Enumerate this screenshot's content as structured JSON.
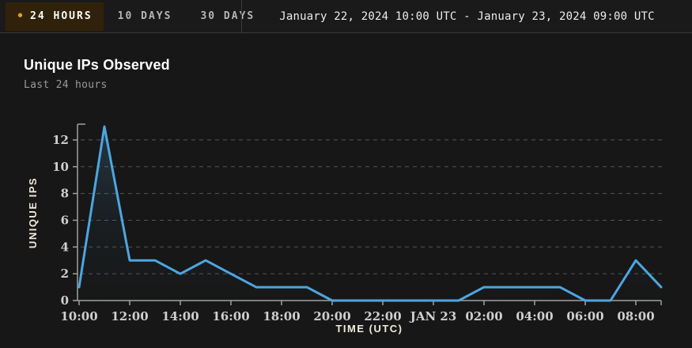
{
  "topbar": {
    "tabs": [
      {
        "label": "24 HOURS",
        "active": true
      },
      {
        "label": "10 DAYS",
        "active": false
      },
      {
        "label": "30 DAYS",
        "active": false
      }
    ],
    "date_range": "January 22, 2024 10:00 UTC - January 23, 2024 09:00 UTC"
  },
  "header": {
    "title": "Unique IPs Observed",
    "subtitle": "Last 24 hours"
  },
  "icons": {
    "active_tab_dot": "•"
  },
  "colors": {
    "background": "#171717",
    "topbar_background": "#1a1a1a",
    "active_tab_background": "#30220a",
    "active_tab_dot": "#e89a1c",
    "divider": "#3a3a3a",
    "line": "#4da6e0",
    "grid": "#555555",
    "axis": "#a0a0a0",
    "tick_text": "#cfcfcf",
    "axis_title_text": "#f0ebdc"
  },
  "chart_data": {
    "type": "line",
    "title": "Unique IPs Observed",
    "subtitle": "Last 24 hours",
    "x": [
      "10:00",
      "11:00",
      "12:00",
      "13:00",
      "14:00",
      "15:00",
      "16:00",
      "17:00",
      "18:00",
      "19:00",
      "20:00",
      "21:00",
      "22:00",
      "23:00",
      "00:00",
      "01:00",
      "02:00",
      "03:00",
      "04:00",
      "05:00",
      "06:00",
      "07:00",
      "08:00",
      "09:00"
    ],
    "values": [
      1,
      13,
      3,
      3,
      2,
      3,
      2,
      1,
      1,
      1,
      0,
      0,
      0,
      0,
      0,
      0,
      1,
      1,
      1,
      1,
      0,
      0,
      3,
      1
    ],
    "x_ticks": [
      {
        "index": 0,
        "label": "10:00"
      },
      {
        "index": 2,
        "label": "12:00"
      },
      {
        "index": 4,
        "label": "14:00"
      },
      {
        "index": 6,
        "label": "16:00"
      },
      {
        "index": 8,
        "label": "18:00"
      },
      {
        "index": 10,
        "label": "20:00"
      },
      {
        "index": 12,
        "label": "22:00"
      },
      {
        "index": 14,
        "label": "JAN 23"
      },
      {
        "index": 16,
        "label": "02:00"
      },
      {
        "index": 18,
        "label": "04:00"
      },
      {
        "index": 20,
        "label": "06:00"
      },
      {
        "index": 22,
        "label": "08:00"
      }
    ],
    "yticks": [
      0,
      2,
      4,
      6,
      8,
      10,
      12
    ],
    "ylim": [
      0,
      13
    ],
    "xlabel": "TIME (UTC)",
    "ylabel": "UNIQUE IPS",
    "line_color": "#4da6e0",
    "grid": "horizontal-dashed",
    "legend": "none"
  }
}
